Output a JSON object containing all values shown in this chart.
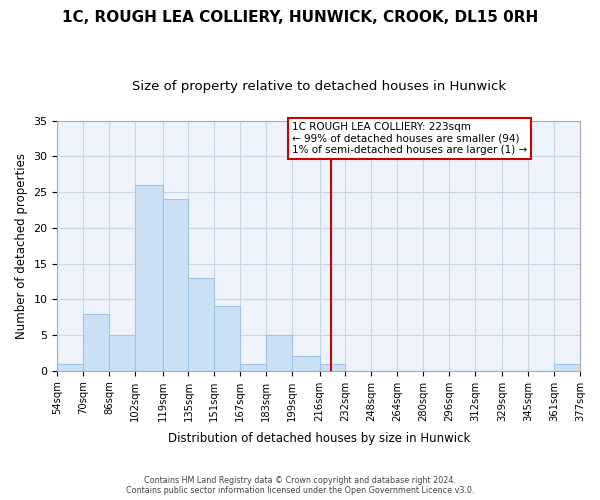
{
  "title": "1C, ROUGH LEA COLLIERY, HUNWICK, CROOK, DL15 0RH",
  "subtitle": "Size of property relative to detached houses in Hunwick",
  "xlabel": "Distribution of detached houses by size in Hunwick",
  "ylabel": "Number of detached properties",
  "bin_edges": [
    54,
    70,
    86,
    102,
    119,
    135,
    151,
    167,
    183,
    199,
    216,
    232,
    248,
    264,
    280,
    296,
    312,
    329,
    345,
    361,
    377
  ],
  "bin_labels": [
    "54sqm",
    "70sqm",
    "86sqm",
    "102sqm",
    "119sqm",
    "135sqm",
    "151sqm",
    "167sqm",
    "183sqm",
    "199sqm",
    "216sqm",
    "232sqm",
    "248sqm",
    "264sqm",
    "280sqm",
    "296sqm",
    "312sqm",
    "329sqm",
    "345sqm",
    "361sqm",
    "377sqm"
  ],
  "counts": [
    1,
    8,
    5,
    26,
    24,
    13,
    9,
    1,
    5,
    2,
    1,
    0,
    0,
    0,
    0,
    0,
    0,
    0,
    0,
    1,
    0
  ],
  "bar_color": "#cce0f5",
  "bar_edgecolor": "#a0c4e8",
  "bar_linewidth": 0.8,
  "vline_x": 223,
  "vline_color": "#cc0000",
  "vline_linewidth": 1.5,
  "ylim": [
    0,
    35
  ],
  "yticks": [
    0,
    5,
    10,
    15,
    20,
    25,
    30,
    35
  ],
  "annotation_title": "1C ROUGH LEA COLLIERY: 223sqm",
  "annotation_line1": "← 99% of detached houses are smaller (94)",
  "annotation_line2": "1% of semi-detached houses are larger (1) →",
  "annotation_box_edgecolor": "#cc0000",
  "annotation_box_facecolor": "#ffffff",
  "footer_line1": "Contains HM Land Registry data © Crown copyright and database right 2024.",
  "footer_line2": "Contains public sector information licensed under the Open Government Licence v3.0.",
  "background_color": "#ffffff",
  "plot_bg_color": "#eef3fb",
  "grid_color": "#c8d4e8",
  "title_fontsize": 11,
  "subtitle_fontsize": 9.5
}
